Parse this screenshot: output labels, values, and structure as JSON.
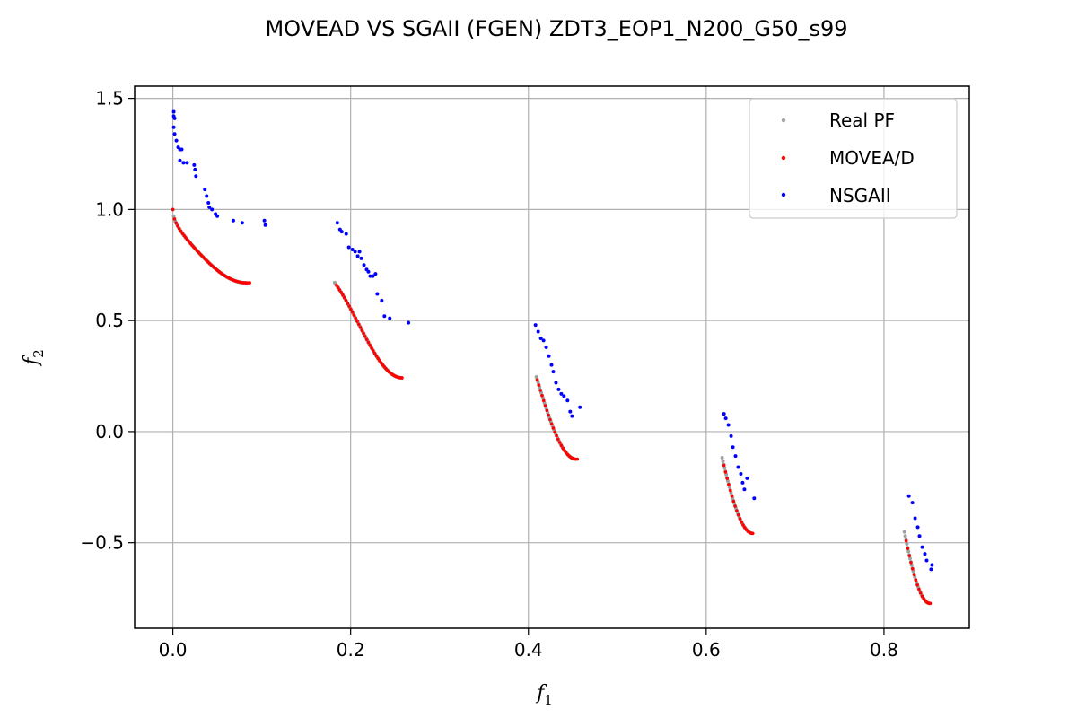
{
  "chart_data": {
    "type": "scatter",
    "title": "MOVEAD VS SGAII (FGEN) ZDT3_EOP1_N200_G50_s99",
    "xlabel": "f",
    "xlabel_sub": "1",
    "ylabel": "f",
    "ylabel_sub": "2",
    "xlim": [
      -0.043,
      0.896
    ],
    "ylim": [
      -0.885,
      1.555
    ],
    "xticks": [
      0.0,
      0.2,
      0.4,
      0.6,
      0.8
    ],
    "xtick_labels": [
      "0.0",
      "0.2",
      "0.4",
      "0.6",
      "0.8"
    ],
    "yticks": [
      1.5,
      1.0,
      0.5,
      0.0,
      -0.5
    ],
    "ytick_labels": [
      "1.5",
      "1.0",
      "0.5",
      "0.0",
      "−0.5"
    ],
    "grid": true,
    "legend_position": "top-right",
    "series": [
      {
        "name": "Real PF",
        "color": "#a0a0a0",
        "kind": "curve",
        "segments": [
          [
            0.0,
            0.083
          ],
          [
            0.182,
            0.258
          ],
          [
            0.409,
            0.452
          ],
          [
            0.618,
            0.652
          ],
          [
            0.823,
            0.852
          ]
        ]
      },
      {
        "name": "MOVEA/D",
        "color": "#ff0000",
        "kind": "curve",
        "segments": [
          [
            0.0,
            0.088
          ],
          [
            0.184,
            0.259
          ],
          [
            0.41,
            0.455
          ],
          [
            0.62,
            0.653
          ],
          [
            0.825,
            0.853
          ]
        ]
      },
      {
        "name": "NSGAII",
        "color": "#0000ff",
        "kind": "points",
        "points": [
          [
            0.001,
            1.44
          ],
          [
            0.001,
            1.42
          ],
          [
            0.002,
            1.41
          ],
          [
            0.001,
            1.37
          ],
          [
            0.002,
            1.34
          ],
          [
            0.004,
            1.31
          ],
          [
            0.006,
            1.28
          ],
          [
            0.008,
            1.27
          ],
          [
            0.01,
            1.27
          ],
          [
            0.008,
            1.22
          ],
          [
            0.012,
            1.21
          ],
          [
            0.016,
            1.21
          ],
          [
            0.024,
            1.2
          ],
          [
            0.025,
            1.18
          ],
          [
            0.026,
            1.15
          ],
          [
            0.036,
            1.09
          ],
          [
            0.038,
            1.06
          ],
          [
            0.04,
            1.03
          ],
          [
            0.041,
            1.01
          ],
          [
            0.044,
            1.0
          ],
          [
            0.048,
            0.98
          ],
          [
            0.05,
            0.97
          ],
          [
            0.068,
            0.95
          ],
          [
            0.078,
            0.94
          ],
          [
            0.103,
            0.95
          ],
          [
            0.104,
            0.93
          ],
          [
            0.185,
            0.94
          ],
          [
            0.188,
            0.91
          ],
          [
            0.19,
            0.9
          ],
          [
            0.195,
            0.89
          ],
          [
            0.198,
            0.83
          ],
          [
            0.202,
            0.82
          ],
          [
            0.205,
            0.81
          ],
          [
            0.208,
            0.79
          ],
          [
            0.21,
            0.81
          ],
          [
            0.212,
            0.78
          ],
          [
            0.215,
            0.75
          ],
          [
            0.218,
            0.73
          ],
          [
            0.22,
            0.72
          ],
          [
            0.222,
            0.7
          ],
          [
            0.225,
            0.7
          ],
          [
            0.228,
            0.71
          ],
          [
            0.23,
            0.62
          ],
          [
            0.235,
            0.59
          ],
          [
            0.238,
            0.52
          ],
          [
            0.244,
            0.51
          ],
          [
            0.265,
            0.49
          ],
          [
            0.408,
            0.48
          ],
          [
            0.411,
            0.45
          ],
          [
            0.414,
            0.42
          ],
          [
            0.417,
            0.41
          ],
          [
            0.42,
            0.38
          ],
          [
            0.423,
            0.34
          ],
          [
            0.426,
            0.3
          ],
          [
            0.428,
            0.27
          ],
          [
            0.431,
            0.22
          ],
          [
            0.434,
            0.19
          ],
          [
            0.437,
            0.17
          ],
          [
            0.44,
            0.16
          ],
          [
            0.444,
            0.14
          ],
          [
            0.447,
            0.09
          ],
          [
            0.449,
            0.07
          ],
          [
            0.458,
            0.11
          ],
          [
            0.62,
            0.08
          ],
          [
            0.622,
            0.06
          ],
          [
            0.625,
            0.03
          ],
          [
            0.628,
            -0.02
          ],
          [
            0.63,
            -0.07
          ],
          [
            0.633,
            -0.11
          ],
          [
            0.636,
            -0.16
          ],
          [
            0.639,
            -0.19
          ],
          [
            0.641,
            -0.23
          ],
          [
            0.643,
            -0.26
          ],
          [
            0.646,
            -0.21
          ],
          [
            0.654,
            -0.3
          ],
          [
            0.828,
            -0.29
          ],
          [
            0.832,
            -0.32
          ],
          [
            0.835,
            -0.39
          ],
          [
            0.838,
            -0.43
          ],
          [
            0.84,
            -0.47
          ],
          [
            0.843,
            -0.52
          ],
          [
            0.846,
            -0.55
          ],
          [
            0.848,
            -0.58
          ],
          [
            0.853,
            -0.62
          ],
          [
            0.854,
            -0.6
          ]
        ]
      }
    ]
  }
}
